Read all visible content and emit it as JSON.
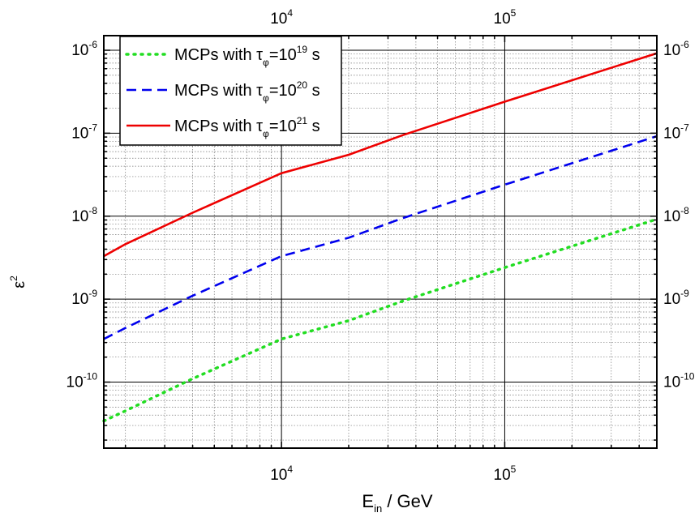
{
  "chart_data": {
    "type": "line",
    "xlabel": "E",
    "xlabel_sub": "in",
    "xlabel_rest": " / GeV",
    "ylabel": "ε",
    "ylabel_sup": "2",
    "x_scale": "log",
    "y_scale": "log",
    "xlim": [
      1600,
      480000
    ],
    "ylim": [
      1.6e-11,
      1.5e-06
    ],
    "grid": true,
    "legend_position": "top-left",
    "x_ticks": [
      {
        "value": 10000,
        "base": "10",
        "exp": "4"
      },
      {
        "value": 100000,
        "base": "10",
        "exp": "5"
      }
    ],
    "y_ticks": [
      {
        "value": 1e-10,
        "base": "10",
        "exp": "-10"
      },
      {
        "value": 1e-09,
        "base": "10",
        "exp": "-9"
      },
      {
        "value": 1e-08,
        "base": "10",
        "exp": "-8"
      },
      {
        "value": 1e-07,
        "base": "10",
        "exp": "-7"
      },
      {
        "value": 1e-06,
        "base": "10",
        "exp": "-6"
      }
    ],
    "series": [
      {
        "name": "MCPs with τ",
        "name_sub": "φ",
        "name_mid": "=10",
        "name_sup": "19",
        "name_end": " s",
        "color": "#22dd22",
        "dash": "dotted",
        "x": [
          1600,
          2000,
          4000,
          10000,
          20000,
          35000,
          100000,
          480000
        ],
        "y": [
          3.4e-11,
          4.5e-11,
          1.1e-10,
          3.3e-10,
          5.5e-10,
          9.5e-10,
          2.4e-09,
          9.2e-09
        ]
      },
      {
        "name": "MCPs with τ",
        "name_sub": "φ",
        "name_mid": "=10",
        "name_sup": "20",
        "name_end": " s",
        "color": "#0000ee",
        "dash": "dashed",
        "x": [
          1600,
          2000,
          4000,
          10000,
          20000,
          35000,
          100000,
          480000
        ],
        "y": [
          3.3e-10,
          4.5e-10,
          1.1e-09,
          3.3e-09,
          5.5e-09,
          9.5e-09,
          2.4e-08,
          9.2e-08
        ]
      },
      {
        "name": "MCPs with τ",
        "name_sub": "φ",
        "name_mid": "=10",
        "name_sup": "21",
        "name_end": " s",
        "color": "#ee0000",
        "dash": "solid",
        "x": [
          1600,
          2000,
          4000,
          10000,
          20000,
          35000,
          100000,
          480000
        ],
        "y": [
          3.3e-09,
          4.6e-09,
          1.1e-08,
          3.3e-08,
          5.5e-08,
          9.5e-08,
          2.4e-07,
          9.2e-07
        ]
      }
    ]
  }
}
